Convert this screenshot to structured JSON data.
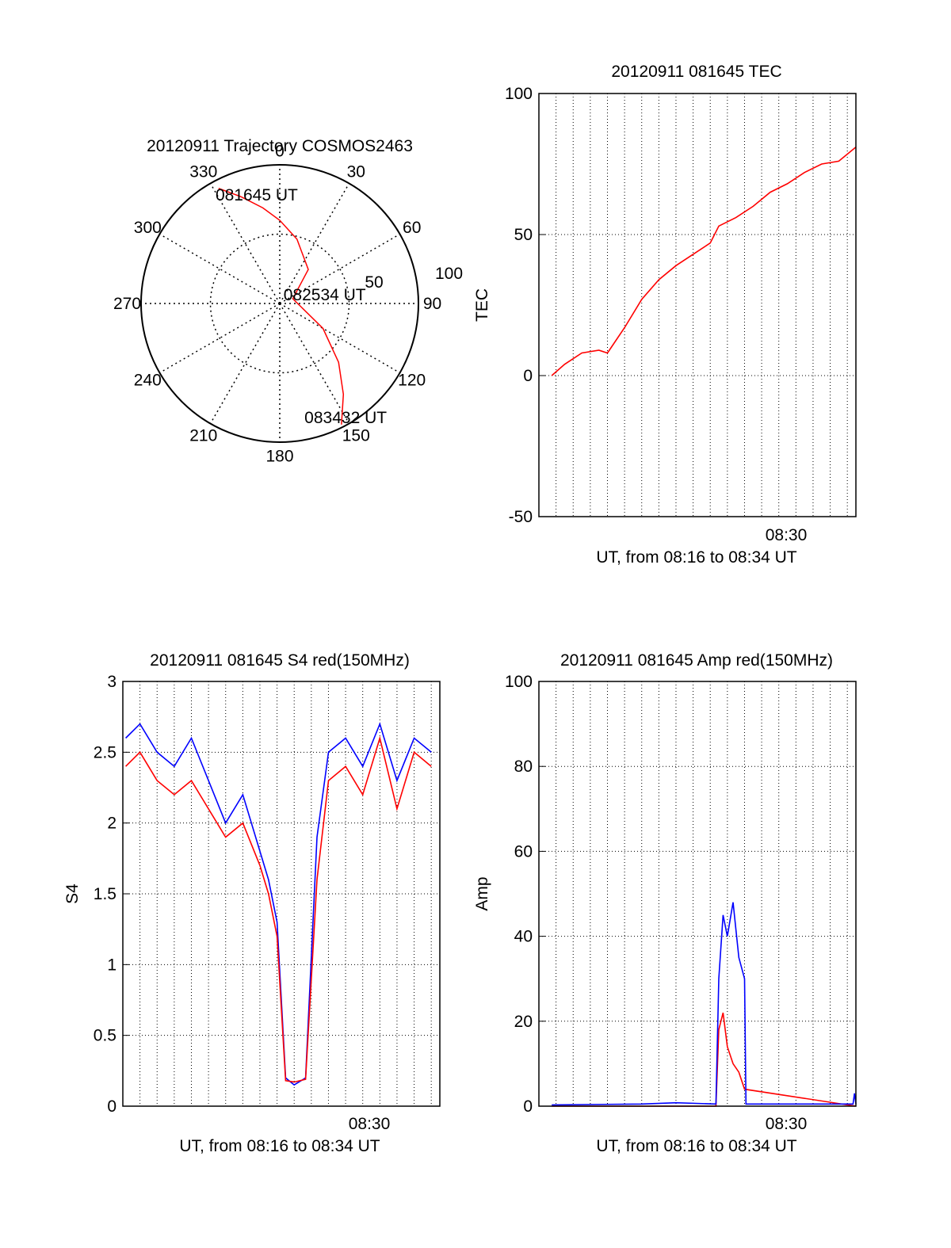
{
  "chart_data": [
    {
      "type": "polar",
      "title": "20120911 Trajectory COSMOS2463",
      "angle_labels": [
        "0",
        "30",
        "60",
        "90",
        "120",
        "150",
        "180",
        "210",
        "240",
        "270",
        "300",
        "330"
      ],
      "radial_labels": [
        "50",
        "100"
      ],
      "series": [
        {
          "color": "#ff0000",
          "azimuth_deg": [
            332,
            340,
            350,
            0,
            15,
            40,
            70,
            100,
            120,
            135,
            145,
            153
          ],
          "zenith_deg": [
            94,
            82,
            70,
            60,
            48,
            32,
            10,
            16,
            36,
            60,
            80,
            98
          ]
        }
      ],
      "annotations": [
        {
          "text": "081645 UT",
          "azimuth_deg": 348,
          "radius": 80
        },
        {
          "text": "082534 UT",
          "azimuth_deg": 79,
          "radius": 33
        },
        {
          "text": "083432 UT",
          "azimuth_deg": 150,
          "radius": 95
        }
      ]
    },
    {
      "type": "line",
      "title": "20120911 081645 TEC",
      "ylabel": "TEC",
      "xlabel": "UT, from 08:16 to 08:34 UT",
      "xlim": [
        "08:16:00",
        "08:34:30"
      ],
      "ylim": [
        -50,
        100
      ],
      "yticks": [
        "-50",
        "0",
        "50",
        "100"
      ],
      "xtick_label": "08:30",
      "grid": true,
      "series": [
        {
          "color": "#ff0000",
          "x": [
            "08:16:45",
            "08:17:30",
            "08:18:30",
            "08:19:30",
            "08:20:00",
            "08:21:00",
            "08:22:00",
            "08:23:00",
            "08:24:00",
            "08:25:00",
            "08:26:00",
            "08:26:30",
            "08:27:30",
            "08:28:30",
            "08:29:30",
            "08:30:30",
            "08:31:30",
            "08:32:30",
            "08:33:30",
            "08:34:30"
          ],
          "y": [
            0,
            4,
            8,
            9,
            8,
            17,
            27,
            34,
            39,
            43,
            47,
            53,
            56,
            60,
            65,
            68,
            72,
            75,
            76,
            81
          ]
        }
      ]
    },
    {
      "type": "line",
      "title": "20120911 081645 S4 red(150MHz)",
      "ylabel": "S4",
      "xlabel": "UT, from 08:16 to 08:34 UT",
      "xlim": [
        "08:16:00",
        "08:34:30"
      ],
      "ylim": [
        0,
        3
      ],
      "yticks": [
        "0",
        "0.5",
        "1",
        "1.5",
        "2",
        "2.5",
        "3"
      ],
      "xtick_label": "08:30",
      "grid": true,
      "series": [
        {
          "color": "#0000ff",
          "x": [
            "08:16:10",
            "08:17:00",
            "08:18:00",
            "08:19:00",
            "08:20:00",
            "08:21:00",
            "08:22:00",
            "08:23:00",
            "08:24:00",
            "08:24:30",
            "08:25:00",
            "08:25:30",
            "08:26:00",
            "08:26:40",
            "08:27:20",
            "08:28:00",
            "08:29:00",
            "08:30:00",
            "08:31:00",
            "08:32:00",
            "08:33:00",
            "08:34:00"
          ],
          "y": [
            2.6,
            2.7,
            2.5,
            2.4,
            2.6,
            2.3,
            2.0,
            2.2,
            1.8,
            1.6,
            1.3,
            0.2,
            0.15,
            0.2,
            1.9,
            2.5,
            2.6,
            2.4,
            2.7,
            2.3,
            2.6,
            2.5
          ]
        },
        {
          "color": "#ff0000",
          "x": [
            "08:16:10",
            "08:17:00",
            "08:18:00",
            "08:19:00",
            "08:20:00",
            "08:21:00",
            "08:22:00",
            "08:23:00",
            "08:24:00",
            "08:24:30",
            "08:25:00",
            "08:25:30",
            "08:26:00",
            "08:26:40",
            "08:27:20",
            "08:28:00",
            "08:29:00",
            "08:30:00",
            "08:31:00",
            "08:32:00",
            "08:33:00",
            "08:34:00"
          ],
          "y": [
            2.4,
            2.5,
            2.3,
            2.2,
            2.3,
            2.1,
            1.9,
            2.0,
            1.7,
            1.5,
            1.2,
            0.18,
            0.17,
            0.19,
            1.6,
            2.3,
            2.4,
            2.2,
            2.6,
            2.1,
            2.5,
            2.4
          ]
        }
      ]
    },
    {
      "type": "line",
      "title": "20120911 081645 Amp red(150MHz)",
      "ylabel": "Amp",
      "xlabel": "UT, from 08:16 to 08:34 UT",
      "xlim": [
        "08:16:00",
        "08:34:30"
      ],
      "ylim": [
        0,
        100
      ],
      "yticks": [
        "0",
        "20",
        "40",
        "60",
        "80",
        "100"
      ],
      "xtick_label": "08:30",
      "grid": true,
      "series": [
        {
          "color": "#ff0000",
          "x": [
            "08:16:45",
            "08:26:20",
            "08:26:30",
            "08:26:45",
            "08:27:00",
            "08:27:20",
            "08:27:40",
            "08:28:00",
            "08:34:30"
          ],
          "y": [
            0,
            0,
            18,
            22,
            14,
            10,
            8,
            4,
            0
          ]
        },
        {
          "color": "#0000ff",
          "x": [
            "08:16:45",
            "08:22:00",
            "08:24:00",
            "08:26:20",
            "08:26:30",
            "08:26:45",
            "08:27:00",
            "08:27:20",
            "08:27:40",
            "08:28:00",
            "08:28:05",
            "08:34:20",
            "08:34:25",
            "08:34:30"
          ],
          "y": [
            0.3,
            0.5,
            0.8,
            0.5,
            30,
            45,
            40,
            48,
            35,
            30,
            0.5,
            0.5,
            3,
            0.5
          ]
        }
      ]
    }
  ]
}
